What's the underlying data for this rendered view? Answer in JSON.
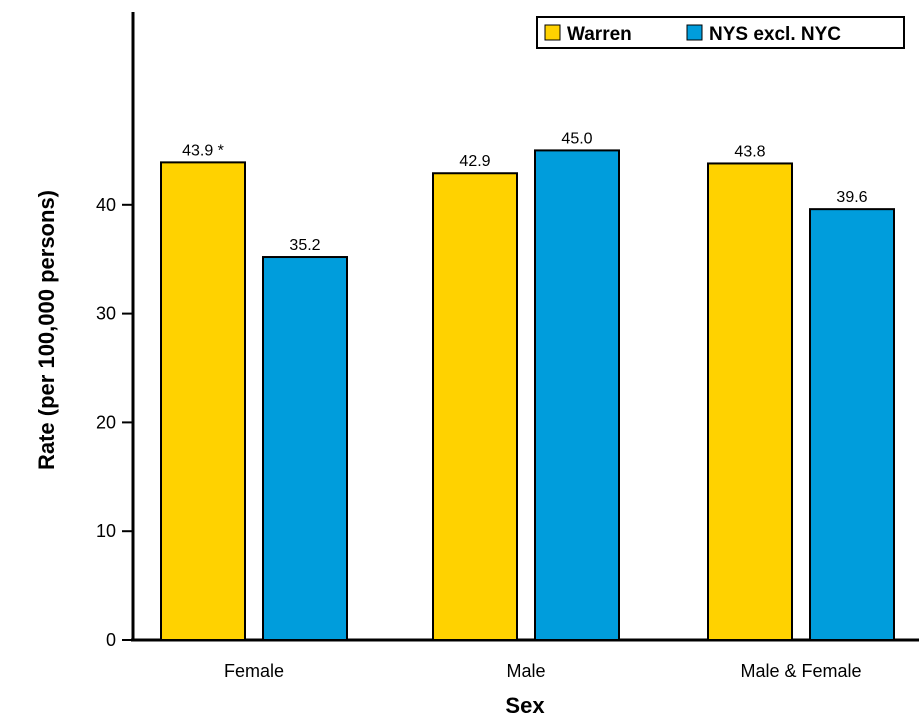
{
  "chart_data": {
    "type": "bar",
    "categories": [
      "Female",
      "Male",
      "Male & Female"
    ],
    "series": [
      {
        "name": "Warren",
        "color": "#FFD200",
        "values": [
          43.9,
          42.9,
          43.8
        ],
        "labels": [
          "43.9 *",
          "42.9",
          "43.8"
        ]
      },
      {
        "name": "NYS excl. NYC",
        "color": "#009DDC",
        "values": [
          35.2,
          45.0,
          39.6
        ],
        "labels": [
          "35.2",
          "45.0",
          "39.6"
        ]
      }
    ],
    "xlabel": "Sex",
    "ylabel": "Rate (per 100,000 persons)",
    "ylim": [
      0,
      56
    ],
    "yticks": [
      "0",
      "10",
      "20",
      "30",
      "40"
    ],
    "grid": false,
    "legend_position": "top-right"
  }
}
